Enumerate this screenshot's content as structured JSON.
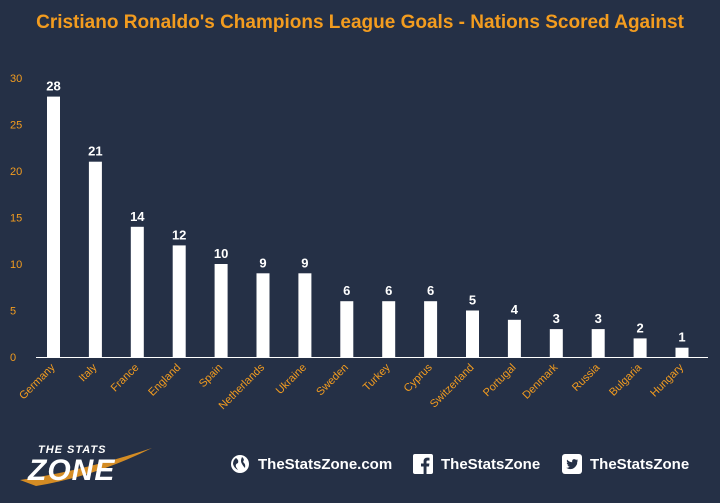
{
  "title": "Cristiano Ronaldo's Champions League Goals - Nations Scored Against",
  "colors": {
    "background": "#253046",
    "accent": "#f39c1f",
    "bar": "#ffffff"
  },
  "chart_data": {
    "type": "bar",
    "categories": [
      "Germany",
      "Italy",
      "France",
      "England",
      "Spain",
      "Netherlands",
      "Ukraine",
      "Sweden",
      "Turkey",
      "Cyprus",
      "Switzerland",
      "Portugal",
      "Denmark",
      "Russia",
      "Bulgaria",
      "Hungary"
    ],
    "values": [
      28,
      21,
      14,
      12,
      10,
      9,
      9,
      6,
      6,
      6,
      5,
      4,
      3,
      3,
      2,
      1
    ],
    "ylim": [
      0,
      30
    ],
    "yticks": [
      0,
      5,
      10,
      15,
      20,
      25,
      30
    ],
    "data_labels": true,
    "grid": false
  },
  "footer": {
    "logo_top": "THE STATS",
    "logo_bottom": "ZONE",
    "links": [
      {
        "icon": "globe-icon",
        "label": "TheStatsZone.com"
      },
      {
        "icon": "facebook-icon",
        "label": "TheStatsZone"
      },
      {
        "icon": "twitter-icon",
        "label": "TheStatsZone"
      }
    ]
  }
}
